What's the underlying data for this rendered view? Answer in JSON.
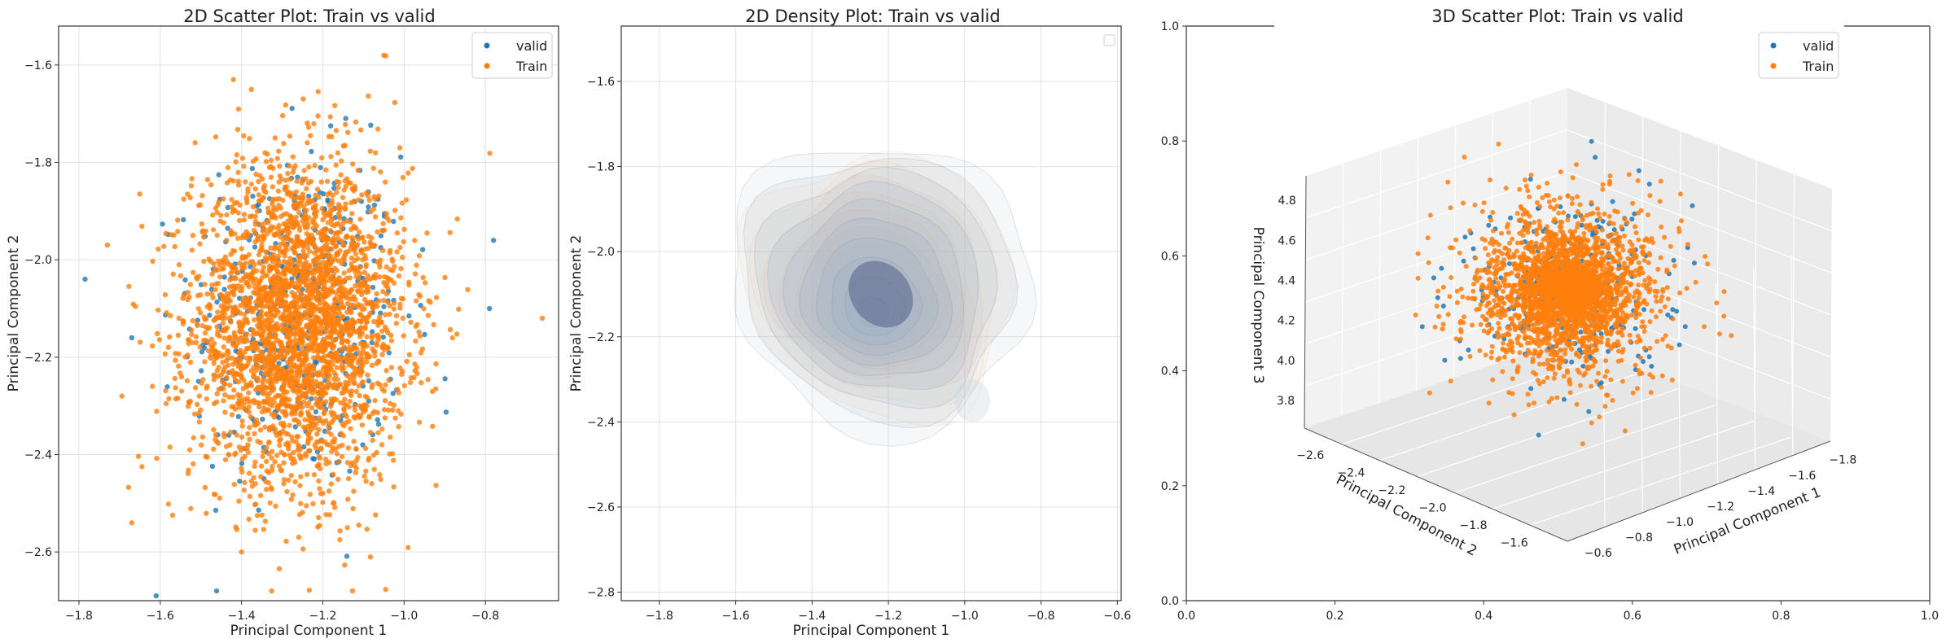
{
  "colors": {
    "valid": "#1f77b4",
    "train": "#ff7f0e",
    "grid": "#e2e2e2",
    "axis": "#333333"
  },
  "chart_data": [
    {
      "type": "scatter",
      "title": "2D Scatter Plot: Train vs valid",
      "xlabel": "Principal Component 1",
      "ylabel": "Principal Component 2",
      "xlim": [
        -1.85,
        -0.62
      ],
      "ylim": [
        -2.7,
        -1.52
      ],
      "x_inverted": true,
      "y_inverted": true,
      "xticks": [
        "−1.8",
        "−1.6",
        "−1.4",
        "−1.2",
        "−1.0",
        "−0.8"
      ],
      "yticks": [
        "−1.6",
        "−1.8",
        "−2.0",
        "−2.2",
        "−2.4",
        "−2.6"
      ],
      "grid": true,
      "legend": {
        "position": "top-right",
        "entries": [
          "valid",
          "Train"
        ]
      },
      "series": [
        {
          "name": "valid",
          "n_points": 420,
          "center": [
            -1.26,
            -2.12
          ],
          "std": [
            0.13,
            0.17
          ],
          "example_points": [
            [
              -1.61,
              -2.69
            ],
            [
              -0.79,
              -2.1
            ],
            [
              -0.78,
              -1.96
            ],
            [
              -1.67,
              -2.16
            ]
          ]
        },
        {
          "name": "Train",
          "n_points": 3000,
          "center": [
            -1.26,
            -2.13
          ],
          "std": [
            0.13,
            0.16
          ],
          "example_points": [
            [
              -1.42,
              -1.63
            ],
            [
              -1.05,
              -1.58
            ],
            [
              -1.73,
              -1.97
            ],
            [
              -0.66,
              -2.12
            ],
            [
              -1.4,
              -2.6
            ],
            [
              -1.67,
              -2.54
            ]
          ]
        }
      ]
    },
    {
      "type": "density",
      "title": "2D Density Plot: Train vs valid",
      "xlabel": "Principal Component 1",
      "ylabel": "Principal Component 2",
      "xlim": [
        -1.9,
        -0.59
      ],
      "ylim": [
        -2.82,
        -1.47
      ],
      "x_inverted": true,
      "y_inverted": true,
      "xticks": [
        "−1.8",
        "−1.6",
        "−1.4",
        "−1.2",
        "−1.0",
        "−0.8",
        "−0.6"
      ],
      "yticks": [
        "−1.6",
        "−1.8",
        "−2.0",
        "−2.2",
        "−2.4",
        "−2.6",
        "−2.8"
      ],
      "grid": true,
      "legend": {
        "position": "top-right",
        "entries": []
      },
      "series": [
        {
          "name": "valid",
          "peak": [
            -1.22,
            -2.08
          ],
          "extent_x": [
            -1.7,
            -0.95
          ],
          "extent_y": [
            -1.78,
            -2.5
          ]
        },
        {
          "name": "Train",
          "peak": [
            -1.22,
            -2.08
          ],
          "extent_x": [
            -1.65,
            -0.98
          ],
          "extent_y": [
            -1.76,
            -2.42
          ]
        }
      ]
    },
    {
      "type": "scatter3d",
      "title": "3D Scatter Plot: Train vs valid",
      "xlabel": "Principal Component 1",
      "ylabel": "Principal Component 2",
      "zlabel": "Principal Component 3",
      "xticks": [
        "−0.6",
        "−0.8",
        "−1.0",
        "−1.2",
        "−1.4",
        "−1.6",
        "−1.8"
      ],
      "yticks": [
        "−2.6",
        "−2.4",
        "−2.2",
        "−2.0",
        "−1.8",
        "−1.6"
      ],
      "zticks": [
        "3.8",
        "4.0",
        "4.2",
        "4.4",
        "4.6",
        "4.8"
      ],
      "frame_xticks": [
        "0.0",
        "0.2",
        "0.4",
        "0.6",
        "0.8",
        "1.0"
      ],
      "frame_yticks": [
        "0.0",
        "0.2",
        "0.4",
        "0.6",
        "0.8",
        "1.0"
      ],
      "grid": true,
      "legend": {
        "position": "top-right",
        "entries": [
          "valid",
          "Train"
        ]
      },
      "series": [
        {
          "name": "valid",
          "n_points": 420,
          "center": [
            -1.26,
            -2.12,
            4.35
          ]
        },
        {
          "name": "Train",
          "n_points": 3000,
          "center": [
            -1.26,
            -2.13,
            4.35
          ]
        }
      ]
    }
  ]
}
